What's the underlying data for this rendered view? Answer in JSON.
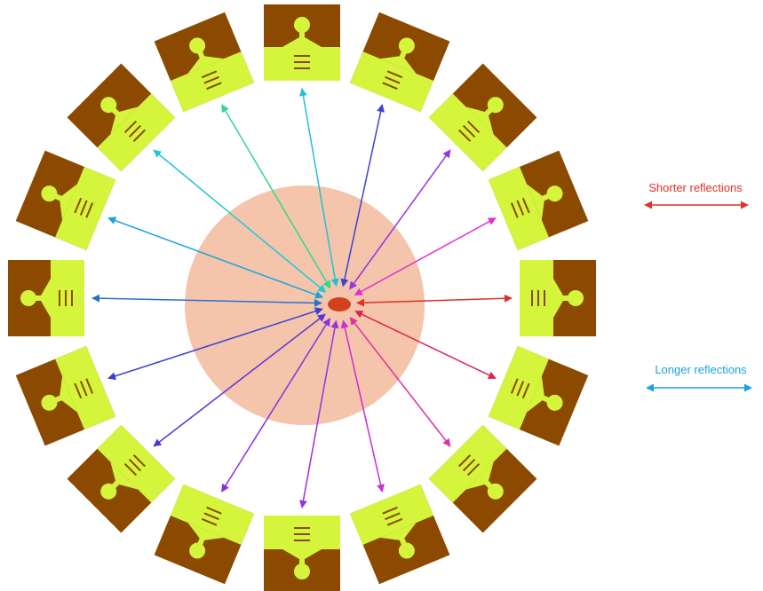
{
  "legend": [
    {
      "label": "Shorter reflections"
    },
    {
      "label": "Longer reflections"
    }
  ]
}
